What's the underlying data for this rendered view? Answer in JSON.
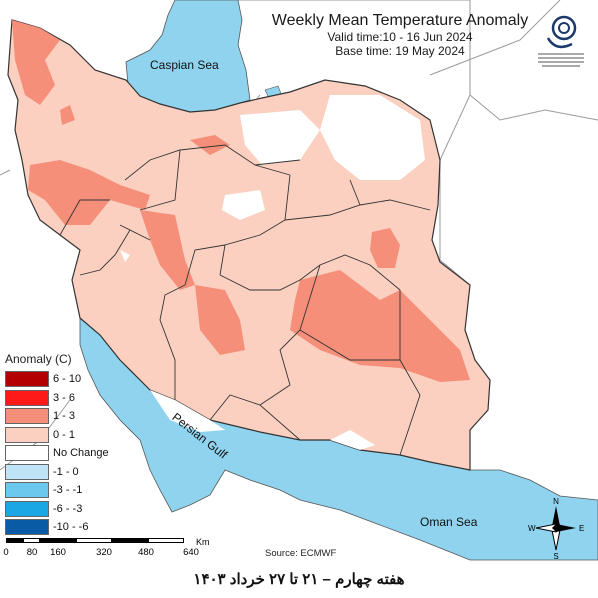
{
  "title": {
    "main": "Weekly Mean Temperature Anomaly",
    "valid": "Valid time:10 - 16 Jun 2024",
    "base": "Base time: 19 May 2024"
  },
  "logo": {
    "caption": "Iran Meteorological Organization emblem"
  },
  "labels": {
    "caspian": "Caspian Sea",
    "persian_gulf": "Persian Gulf",
    "oman_sea": "Oman Sea"
  },
  "legend": {
    "title": "Anomaly (C)",
    "items": [
      {
        "label": "6 - 10",
        "color": "#b40000"
      },
      {
        "label": "3 - 6",
        "color": "#ff1a1a"
      },
      {
        "label": "1 - 3",
        "color": "#f58f7a"
      },
      {
        "label": "0 - 1",
        "color": "#fbd0c0"
      },
      {
        "label": "No Change",
        "color": "#ffffff"
      },
      {
        "label": "-1 - 0",
        "color": "#bfe4f7"
      },
      {
        "label": "-3 - -1",
        "color": "#6cc9ee"
      },
      {
        "label": "-6 - -3",
        "color": "#1aa7e3"
      },
      {
        "label": "-10 - -6",
        "color": "#0a5ba6"
      }
    ]
  },
  "scale": {
    "unit": "Km",
    "ticks": [
      "0",
      "80",
      "160",
      "320",
      "480",
      "640"
    ]
  },
  "source": "Source: ECMWF",
  "compass": {
    "n": "N",
    "s": "S",
    "e": "E",
    "w": "W"
  },
  "footer": "هفته چهارم – ۲۱ تا ۲۷ خرداد ۱۴۰۳",
  "colors": {
    "sea": "#8fd3ee",
    "land_light": "#fbd0c0",
    "land_warm": "#f58f7a",
    "no_change": "#ffffff",
    "border": "#333333",
    "outside_border": "#9a9a9a"
  }
}
